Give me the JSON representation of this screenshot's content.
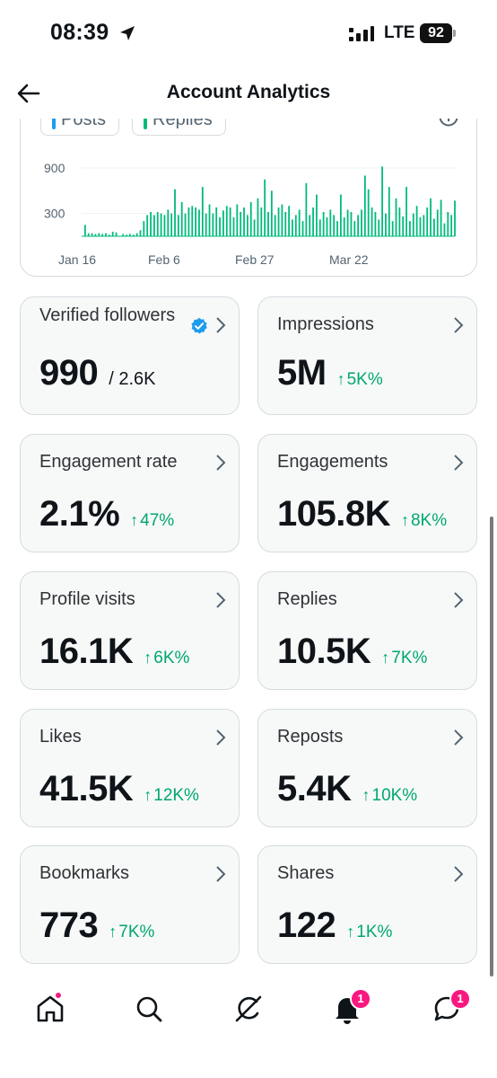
{
  "status_bar": {
    "time": "08:39",
    "network": "LTE",
    "battery": "92"
  },
  "header": {
    "title": "Account Analytics"
  },
  "chart": {
    "legend": [
      {
        "label": "Posts",
        "color": "#1d9bf0"
      },
      {
        "label": "Replies",
        "color": "#00ba7c"
      }
    ]
  },
  "chart_data": {
    "type": "bar",
    "x_tick_labels": [
      "Jan 16",
      "Feb 6",
      "Feb 27",
      "Mar 22"
    ],
    "y_tick_labels": [
      "900",
      "300"
    ],
    "series": [
      {
        "name": "Replies",
        "color": "#00ba7c",
        "values": [
          0,
          150,
          40,
          40,
          30,
          40,
          30,
          40,
          20,
          60,
          50,
          0,
          30,
          20,
          30,
          20,
          40,
          80,
          200,
          280,
          320,
          280,
          320,
          300,
          280,
          350,
          300,
          620,
          280,
          450,
          300,
          380,
          400,
          380,
          350,
          650,
          300,
          420,
          300,
          380,
          250,
          340,
          400,
          380,
          250,
          420,
          320,
          380,
          280,
          450,
          220,
          500,
          380,
          750,
          320,
          600,
          280,
          380,
          420,
          320,
          400,
          220,
          280,
          350,
          200,
          700,
          280,
          380,
          550,
          220,
          320,
          250,
          350,
          280,
          200,
          550,
          250,
          350,
          320,
          200,
          280,
          350,
          800,
          620,
          380,
          320,
          220,
          920,
          300,
          650,
          200,
          500,
          380,
          260,
          650,
          200,
          300,
          400,
          250,
          280,
          380,
          500,
          230,
          350,
          480,
          170,
          320,
          280,
          470
        ]
      }
    ]
  },
  "stats": [
    {
      "label": "Verified followers",
      "value": "990",
      "total": "/ 2.6K",
      "verified": true
    },
    {
      "label": "Impressions",
      "value": "5M",
      "change": "5K%"
    },
    {
      "label": "Engagement rate",
      "value": "2.1%",
      "change": "47%"
    },
    {
      "label": "Engagements",
      "value": "105.8K",
      "change": "8K%"
    },
    {
      "label": "Profile visits",
      "value": "16.1K",
      "change": "6K%"
    },
    {
      "label": "Replies",
      "value": "10.5K",
      "change": "7K%"
    },
    {
      "label": "Likes",
      "value": "41.5K",
      "change": "12K%"
    },
    {
      "label": "Reposts",
      "value": "5.4K",
      "change": "10K%"
    },
    {
      "label": "Bookmarks",
      "value": "773",
      "change": "7K%"
    },
    {
      "label": "Shares",
      "value": "122",
      "change": "1K%"
    }
  ],
  "nav": {
    "items": [
      {
        "name": "home",
        "icon": "home-icon",
        "dot": true
      },
      {
        "name": "search",
        "icon": "search-icon"
      },
      {
        "name": "grok",
        "icon": "grok-icon"
      },
      {
        "name": "notifications",
        "icon": "bell-icon",
        "badge": "1"
      },
      {
        "name": "messages",
        "icon": "chat-icon",
        "badge": "1"
      }
    ]
  },
  "colors": {
    "accent_green": "#00a86b",
    "brand_blue": "#1d9bf0",
    "badge_pink": "#f91880"
  }
}
